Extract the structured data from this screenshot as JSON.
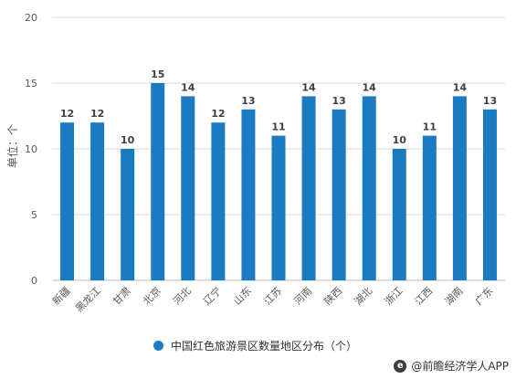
{
  "colors": {
    "bar": "#1a7bc1",
    "grid": "#d9d9d9",
    "axis_text": "#595959",
    "label_text": "#404040"
  },
  "chart_data": {
    "type": "bar",
    "categories": [
      "新疆",
      "黑龙江",
      "甘肃",
      "北京",
      "河北",
      "辽宁",
      "山东",
      "江苏",
      "河南",
      "陕西",
      "湖北",
      "浙江",
      "江西",
      "湖南",
      "广东"
    ],
    "series": [
      {
        "name": "中国红色旅游景区数量地区分布（个）",
        "values": [
          12,
          12,
          10,
          15,
          14,
          12,
          13,
          11,
          14,
          13,
          14,
          10,
          11,
          14,
          13
        ]
      }
    ],
    "ylabel": "单位：个",
    "xlabel": "",
    "ylim": [
      0,
      20
    ],
    "yticks": [
      0,
      5,
      10,
      15,
      20
    ],
    "grid": true,
    "legend_position": "bottom-center",
    "data_labels": true
  },
  "legend": {
    "label": "中国红色旅游景区数量地区分布（个）"
  },
  "brand": {
    "icon": "brand-logo-icon",
    "text": "@前瞻经济学人APP"
  }
}
